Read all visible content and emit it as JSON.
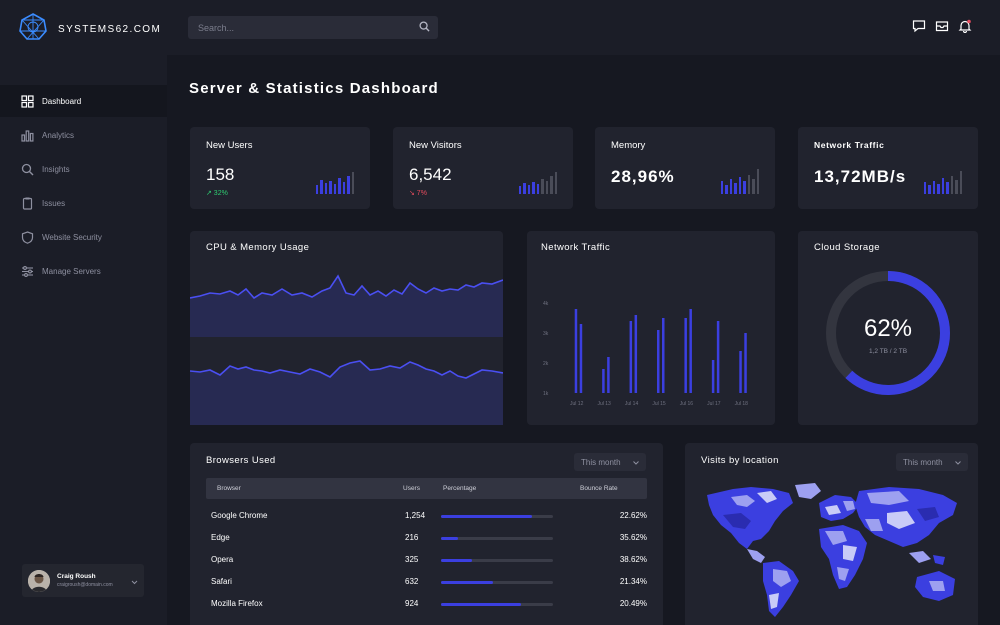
{
  "brand": {
    "title": "SYSTEMS62.COM"
  },
  "search": {
    "placeholder": "Search..."
  },
  "sidebar": {
    "items": [
      {
        "label": "Dashboard",
        "icon": "grid-icon",
        "active": true
      },
      {
        "label": "Analytics",
        "icon": "bar-chart-icon",
        "active": false
      },
      {
        "label": "Insights",
        "icon": "magnifier-icon",
        "active": false
      },
      {
        "label": "Issues",
        "icon": "clipboard-icon",
        "active": false
      },
      {
        "label": "Website Security",
        "icon": "shield-icon",
        "active": false
      },
      {
        "label": "Manage Servers",
        "icon": "sliders-icon",
        "active": false
      }
    ]
  },
  "profile": {
    "name": "Craig Roush",
    "email": "craigroush@domain.com"
  },
  "page": {
    "title": "Server & Statistics Dashboard"
  },
  "stats": [
    {
      "label": "New Users",
      "value": "158",
      "delta": "↗ 32%",
      "delta_color": "#2ecc71"
    },
    {
      "label": "New Visitors",
      "value": "6,542",
      "delta": "↘ 7%",
      "delta_color": "#e74c5e"
    },
    {
      "label": "Memory",
      "value": "28,96%",
      "delta": "",
      "delta_color": ""
    },
    {
      "label": "Network Traffic",
      "value": "13,72MB/s",
      "delta": "",
      "delta_color": ""
    }
  ],
  "cpu": {
    "title": "CPU & Memory Usage"
  },
  "network": {
    "title": "Network Traffic",
    "chart_data": {
      "type": "bar",
      "categories": [
        "Jul 12",
        "Jul 13",
        "Jul 14",
        "Jul 15",
        "Jul 16",
        "Jul 17",
        "Jul 18"
      ],
      "y_ticks": [
        "1k",
        "2k",
        "3k",
        "4k"
      ],
      "series": [
        {
          "values": [
            3.8,
            1.8,
            3.4,
            3.1,
            3.5,
            2.1,
            2.4
          ]
        },
        {
          "values": [
            3.3,
            2.2,
            3.6,
            3.5,
            3.8,
            3.4,
            3.0
          ]
        }
      ],
      "ylim": [
        1,
        4.2
      ]
    }
  },
  "storage": {
    "title": "Cloud Storage",
    "percent": 62,
    "percent_label": "62%",
    "detail": "1,2 TB / 2 TB"
  },
  "browsers": {
    "title": "Browsers Used",
    "filter": "This month",
    "columns": {
      "browser": "Browser",
      "users": "Users",
      "percentage": "Percentage",
      "bounce": "Bounce Rate"
    },
    "rows": [
      {
        "browser": "Google Chrome",
        "users": "1,254",
        "percent": 0.81,
        "bounce": "22.62%"
      },
      {
        "browser": "Edge",
        "users": "216",
        "percent": 0.15,
        "bounce": "35.62%"
      },
      {
        "browser": "Opera",
        "users": "325",
        "percent": 0.28,
        "bounce": "38.62%"
      },
      {
        "browser": "Safari",
        "users": "632",
        "percent": 0.46,
        "bounce": "21.34%"
      },
      {
        "browser": "Mozilla Firefox",
        "users": "924",
        "percent": 0.71,
        "bounce": "20.49%"
      }
    ]
  },
  "visits": {
    "title": "Visits by location",
    "filter": "This month"
  },
  "colors": {
    "accent": "#3b3fe0",
    "card": "#21232e",
    "bg": "#161821"
  }
}
